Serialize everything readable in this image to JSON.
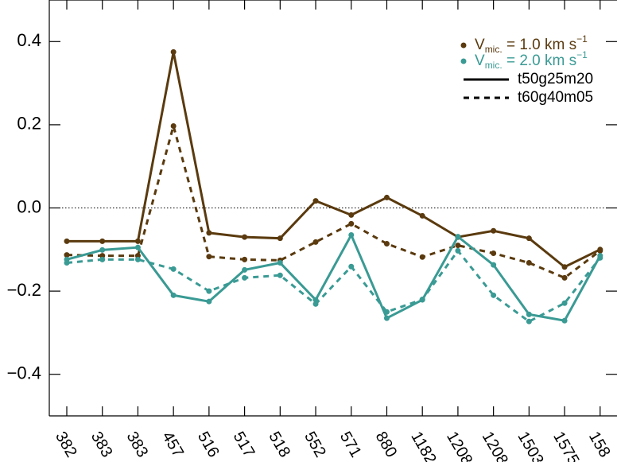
{
  "chart_data": {
    "type": "line",
    "categories": [
      "382",
      "383",
      "383",
      "457",
      "516",
      "517",
      "518",
      "552",
      "571",
      "880",
      "1182",
      "1208",
      "1208",
      "1503",
      "1575",
      "158"
    ],
    "ylim": [
      -0.5,
      0.5
    ],
    "yticks": [
      {
        "value": -0.4,
        "label": "−0.4"
      },
      {
        "value": -0.2,
        "label": "−0.2"
      },
      {
        "value": 0,
        "label": "0.0"
      },
      0.2,
      0.4
    ],
    "hline": 0,
    "series": [
      {
        "color": "#5a3a0e",
        "dashed": false,
        "values": [
          -0.08,
          -0.08,
          -0.08,
          0.375,
          -0.06,
          -0.07,
          -0.073,
          0.017,
          -0.017,
          0.025,
          -0.019,
          -0.07,
          -0.055,
          -0.073,
          -0.142,
          -0.1
        ]
      },
      {
        "color": "#5a3a0e",
        "dashed": true,
        "values": [
          -0.113,
          -0.115,
          -0.115,
          0.197,
          -0.117,
          -0.124,
          -0.126,
          -0.082,
          -0.038,
          -0.086,
          -0.118,
          -0.09,
          -0.109,
          -0.132,
          -0.168,
          -0.103
        ]
      },
      {
        "color": "#3a9a94",
        "dashed": false,
        "values": [
          -0.124,
          -0.101,
          -0.095,
          -0.21,
          -0.225,
          -0.149,
          -0.132,
          -0.221,
          -0.065,
          -0.265,
          -0.221,
          -0.069,
          -0.137,
          -0.256,
          -0.271,
          -0.115
        ]
      },
      {
        "color": "#3a9a94",
        "dashed": true,
        "values": [
          -0.132,
          -0.124,
          -0.124,
          -0.147,
          -0.2,
          -0.168,
          -0.162,
          -0.231,
          -0.141,
          -0.25,
          -0.22,
          -0.103,
          -0.21,
          -0.273,
          -0.229,
          -0.12
        ]
      }
    ],
    "legend": {
      "colors": [
        {
          "symbol": "V",
          "sub": "mic.",
          "text": " = 1.0 km s",
          "sup": "−1",
          "color": "#5a3a0e"
        },
        {
          "symbol": "V",
          "sub": "mic.",
          "text": " = 2.0 km s",
          "sup": "−1",
          "color": "#3a9a94"
        }
      ],
      "styles": [
        {
          "label": "t50g25m20",
          "dashed": false
        },
        {
          "label": "t60g40m05",
          "dashed": true
        }
      ]
    }
  }
}
